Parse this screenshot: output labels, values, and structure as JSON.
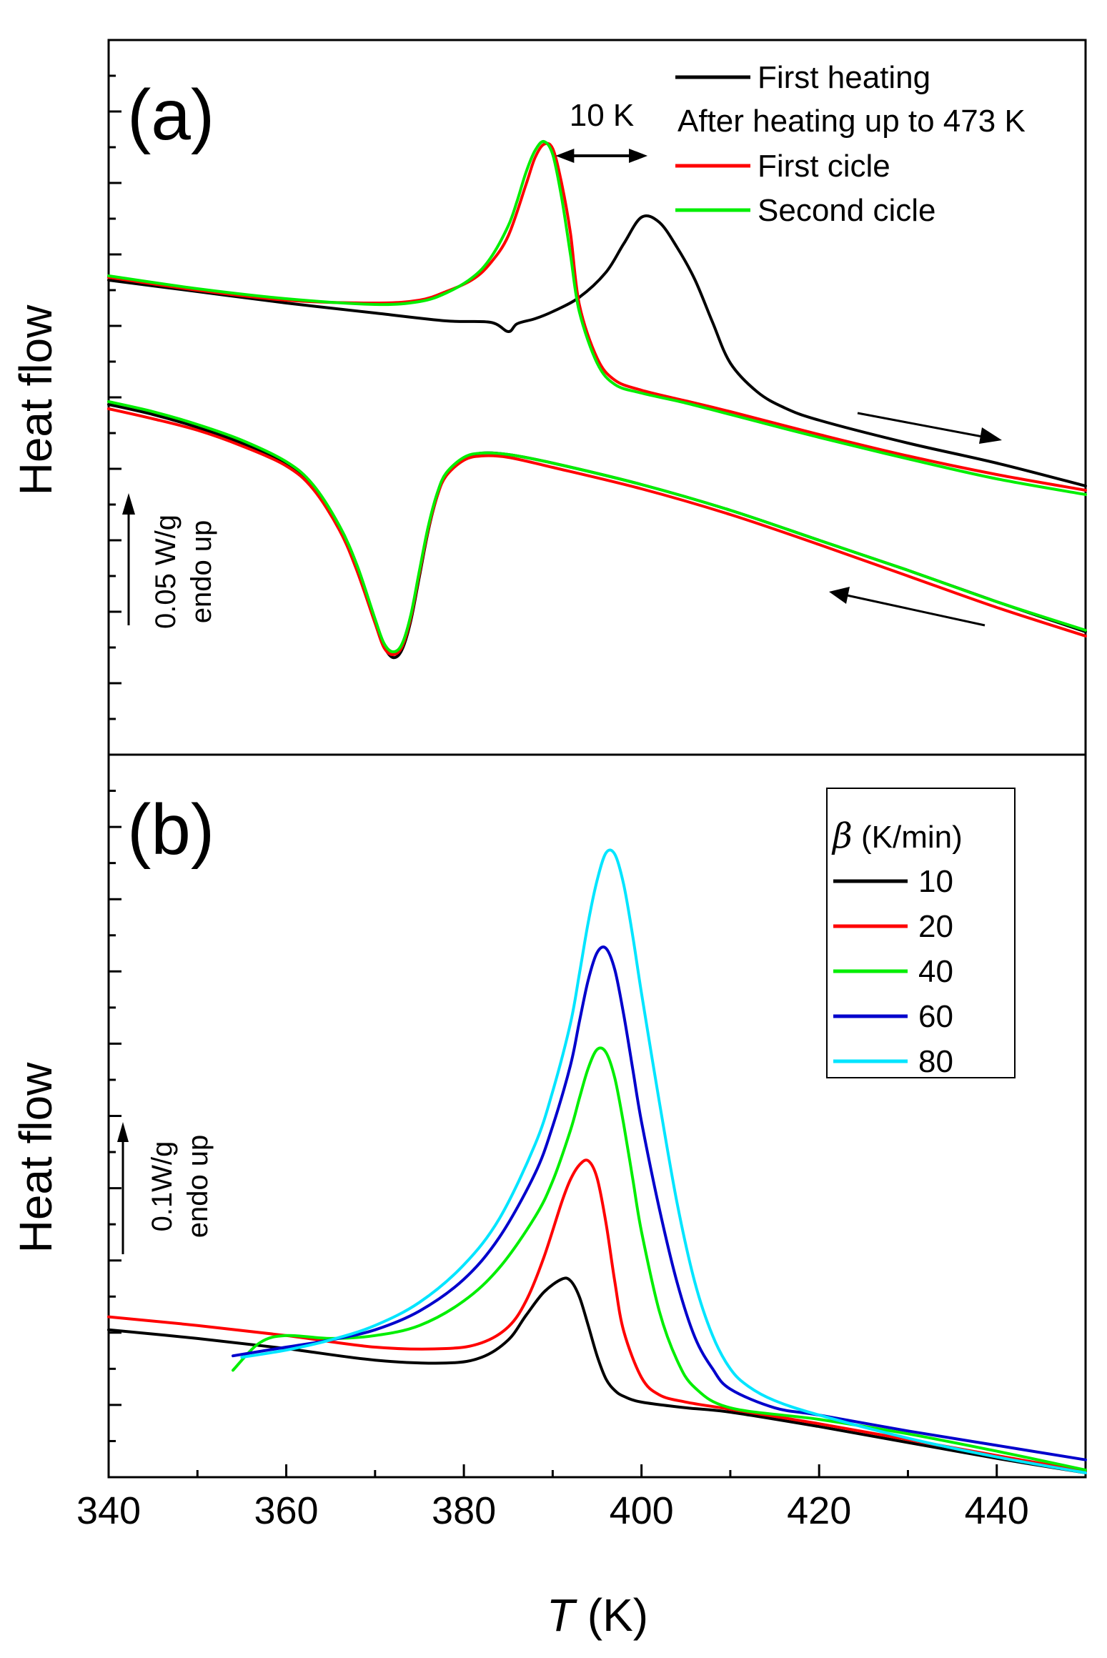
{
  "chart_data": [
    {
      "panel": "a",
      "type": "line",
      "panel_label": "(a)",
      "ylabel": "Heat flow",
      "xlim": [
        340,
        450
      ],
      "ylim": [
        0,
        100
      ],
      "y_ticks_visible": false,
      "grid": false,
      "legend_location": "top-right",
      "legend_subtitle": "After heating up to 473 K",
      "annotation_peak_shift": "10 K",
      "annotation_peak_shift_range": [
        390,
        401
      ],
      "scale_bar_line1": "0.05 W/g",
      "scale_bar_line2": "endo up",
      "scale_bar_value": 0.05,
      "series": [
        {
          "name": "First heating",
          "color": "#000000",
          "branch": "heating",
          "x": [
            340,
            350,
            360,
            370,
            378,
            383,
            385,
            386,
            388,
            390,
            393,
            396,
            398,
            400,
            402,
            404,
            406,
            408,
            410,
            413,
            416,
            420,
            430,
            440,
            450
          ],
          "y": [
            66.4,
            64.8,
            63.2,
            61.8,
            60.7,
            60.5,
            59.2,
            60.3,
            61.0,
            62.0,
            64.0,
            67.5,
            71.5,
            75.2,
            74.5,
            71.0,
            66.5,
            60.5,
            54.8,
            50.8,
            48.6,
            46.8,
            43.6,
            40.8,
            37.6
          ]
        },
        {
          "name": "First cicle",
          "color": "#ff0000",
          "branch": "heating",
          "x": [
            340,
            350,
            360,
            370,
            375,
            378,
            381,
            383,
            385,
            387,
            388,
            389,
            390,
            391,
            392,
            393,
            395,
            397,
            400,
            405,
            410,
            420,
            430,
            440,
            450
          ],
          "y": [
            66.8,
            65.0,
            63.6,
            63.2,
            63.6,
            64.8,
            66.5,
            68.8,
            72.6,
            79.8,
            83.5,
            85.4,
            84.8,
            80.0,
            73.0,
            63.0,
            55.5,
            52.4,
            51.0,
            49.5,
            48.0,
            44.8,
            41.8,
            39.2,
            37.0
          ]
        },
        {
          "name": "Second cicle",
          "color": "#00ee00",
          "branch": "heating",
          "x": [
            340,
            350,
            360,
            370,
            375,
            378,
            381,
            383,
            385,
            386,
            387,
            388,
            389,
            390,
            391,
            392,
            393,
            395,
            397,
            400,
            405,
            410,
            420,
            430,
            440,
            450
          ],
          "y": [
            67.0,
            65.2,
            63.8,
            63.0,
            63.4,
            64.6,
            66.8,
            69.5,
            74.0,
            77.5,
            81.5,
            84.5,
            85.8,
            84.0,
            78.0,
            70.0,
            62.0,
            54.8,
            51.8,
            50.6,
            49.2,
            47.6,
            44.4,
            41.4,
            38.6,
            36.4
          ]
        },
        {
          "name": "First heating",
          "color": "#000000",
          "branch": "cooling",
          "x": [
            340,
            345,
            350,
            355,
            360,
            363,
            366,
            368,
            370,
            371,
            372,
            373,
            374,
            375,
            376,
            377,
            378,
            380,
            382,
            385,
            390,
            400,
            410,
            420,
            430,
            440,
            450
          ],
          "y": [
            49.0,
            47.6,
            45.8,
            43.6,
            40.8,
            37.6,
            31.8,
            26.2,
            18.8,
            15.2,
            13.6,
            14.6,
            18.6,
            25.0,
            31.4,
            36.2,
            39.2,
            41.4,
            42.2,
            42.0,
            40.8,
            37.8,
            34.2,
            30.0,
            25.8,
            21.4,
            17.2
          ]
        },
        {
          "name": "First cicle",
          "color": "#ff0000",
          "branch": "cooling",
          "x": [
            340,
            345,
            350,
            355,
            360,
            363,
            366,
            368,
            370,
            371,
            372,
            373,
            374,
            375,
            376,
            377,
            378,
            380,
            382,
            385,
            390,
            400,
            410,
            420,
            430,
            440,
            450
          ],
          "y": [
            48.4,
            47.0,
            45.4,
            43.2,
            40.4,
            37.2,
            31.4,
            25.6,
            18.4,
            15.0,
            14.0,
            15.0,
            19.0,
            25.4,
            31.6,
            36.2,
            39.0,
            41.2,
            41.8,
            41.6,
            40.2,
            37.2,
            33.6,
            29.4,
            25.0,
            20.6,
            16.6
          ]
        },
        {
          "name": "Second cicle",
          "color": "#00ee00",
          "branch": "cooling",
          "x": [
            340,
            345,
            350,
            355,
            360,
            363,
            366,
            368,
            370,
            371,
            372,
            373,
            374,
            375,
            376,
            377,
            378,
            380,
            382,
            385,
            390,
            400,
            410,
            420,
            430,
            440,
            450
          ],
          "y": [
            49.4,
            48.0,
            46.2,
            44.0,
            41.0,
            37.8,
            32.0,
            26.4,
            19.0,
            15.6,
            14.4,
            15.4,
            19.4,
            25.8,
            32.0,
            36.6,
            39.4,
            41.6,
            42.2,
            42.0,
            40.8,
            37.8,
            34.2,
            30.0,
            25.8,
            21.4,
            17.4
          ]
        }
      ]
    },
    {
      "panel": "b",
      "type": "line",
      "panel_label": "(b)",
      "ylabel": "Heat flow",
      "xlabel_symbol": "T",
      "xlabel_unit": " (K)",
      "xlim": [
        340,
        450
      ],
      "ylim": [
        0,
        100
      ],
      "x_ticks": [
        340,
        360,
        380,
        400,
        420,
        440
      ],
      "y_ticks_visible": false,
      "grid": false,
      "legend_location": "top-right",
      "legend_title_symbol": "β",
      "legend_title_unit": " (K/min)",
      "scale_bar_line1": "0.1W/g",
      "scale_bar_line2": "endo up",
      "scale_bar_value": 0.1,
      "series": [
        {
          "name": "10",
          "color": "#000000",
          "x": [
            340,
            350,
            360,
            370,
            378,
            382,
            385,
            387,
            389,
            391,
            392,
            393,
            394,
            395,
            396,
            397,
            398,
            400,
            405,
            410,
            420,
            430,
            440,
            450
          ],
          "y": [
            20.4,
            19.2,
            17.8,
            16.2,
            15.8,
            16.6,
            19.0,
            22.4,
            25.6,
            27.4,
            27.2,
            25.0,
            21.0,
            16.8,
            13.6,
            12.0,
            11.2,
            10.4,
            9.6,
            9.0,
            7.0,
            4.8,
            2.6,
            0.6
          ]
        },
        {
          "name": "20",
          "color": "#ff0000",
          "x": [
            340,
            350,
            360,
            370,
            378,
            382,
            385,
            387,
            389,
            391,
            392,
            393,
            394,
            395,
            396,
            397,
            398,
            400,
            402,
            405,
            410,
            420,
            430,
            440,
            450
          ],
          "y": [
            22.2,
            21.0,
            19.6,
            18.0,
            17.8,
            18.6,
            20.8,
            24.4,
            30.4,
            38.0,
            41.2,
            43.2,
            43.8,
            41.4,
            35.2,
            27.0,
            20.2,
            13.8,
            11.4,
            10.4,
            9.4,
            7.4,
            5.2,
            3.0,
            0.8
          ]
        },
        {
          "name": "40",
          "color": "#00ee00",
          "x": [
            354,
            357,
            360,
            365,
            370,
            375,
            380,
            384,
            388,
            390,
            392,
            393,
            394,
            395,
            396,
            397,
            398,
            399,
            400,
            402,
            404,
            406,
            410,
            420,
            430,
            440,
            450
          ],
          "y": [
            14.8,
            18.6,
            19.6,
            19.2,
            19.6,
            21.0,
            24.4,
            29.0,
            36.0,
            41.0,
            48.0,
            52.4,
            56.6,
            59.2,
            58.8,
            55.2,
            48.8,
            41.4,
            34.0,
            23.0,
            16.2,
            12.4,
            9.6,
            8.0,
            6.0,
            3.6,
            1.0
          ]
        },
        {
          "name": "60",
          "color": "#0000cc",
          "x": [
            354,
            360,
            365,
            370,
            375,
            380,
            384,
            388,
            390,
            392,
            393,
            394,
            395,
            396,
            397,
            398,
            399,
            400,
            402,
            404,
            406,
            408,
            410,
            415,
            420,
            430,
            440,
            450
          ],
          "y": [
            16.8,
            18.0,
            19.0,
            20.4,
            23.0,
            27.4,
            33.2,
            42.0,
            48.6,
            57.0,
            63.0,
            68.8,
            72.6,
            73.2,
            70.2,
            64.0,
            56.6,
            49.2,
            37.2,
            27.0,
            19.4,
            15.0,
            12.2,
            9.6,
            8.6,
            6.4,
            4.4,
            2.4
          ]
        },
        {
          "name": "80",
          "color": "#00e5ff",
          "x": [
            355,
            360,
            365,
            370,
            375,
            380,
            384,
            388,
            390,
            392,
            393,
            394,
            395,
            396,
            397,
            398,
            399,
            400,
            402,
            404,
            406,
            408,
            410,
            412,
            415,
            420,
            430,
            440,
            450
          ],
          "y": [
            16.6,
            17.6,
            19.0,
            21.0,
            24.2,
            29.4,
            35.8,
            46.0,
            53.4,
            62.8,
            69.6,
            76.8,
            82.6,
            86.4,
            86.2,
            82.0,
            75.0,
            67.0,
            52.0,
            38.0,
            27.0,
            19.6,
            15.0,
            12.6,
            10.6,
            8.6,
            5.4,
            2.8,
            0.6
          ]
        }
      ]
    }
  ]
}
